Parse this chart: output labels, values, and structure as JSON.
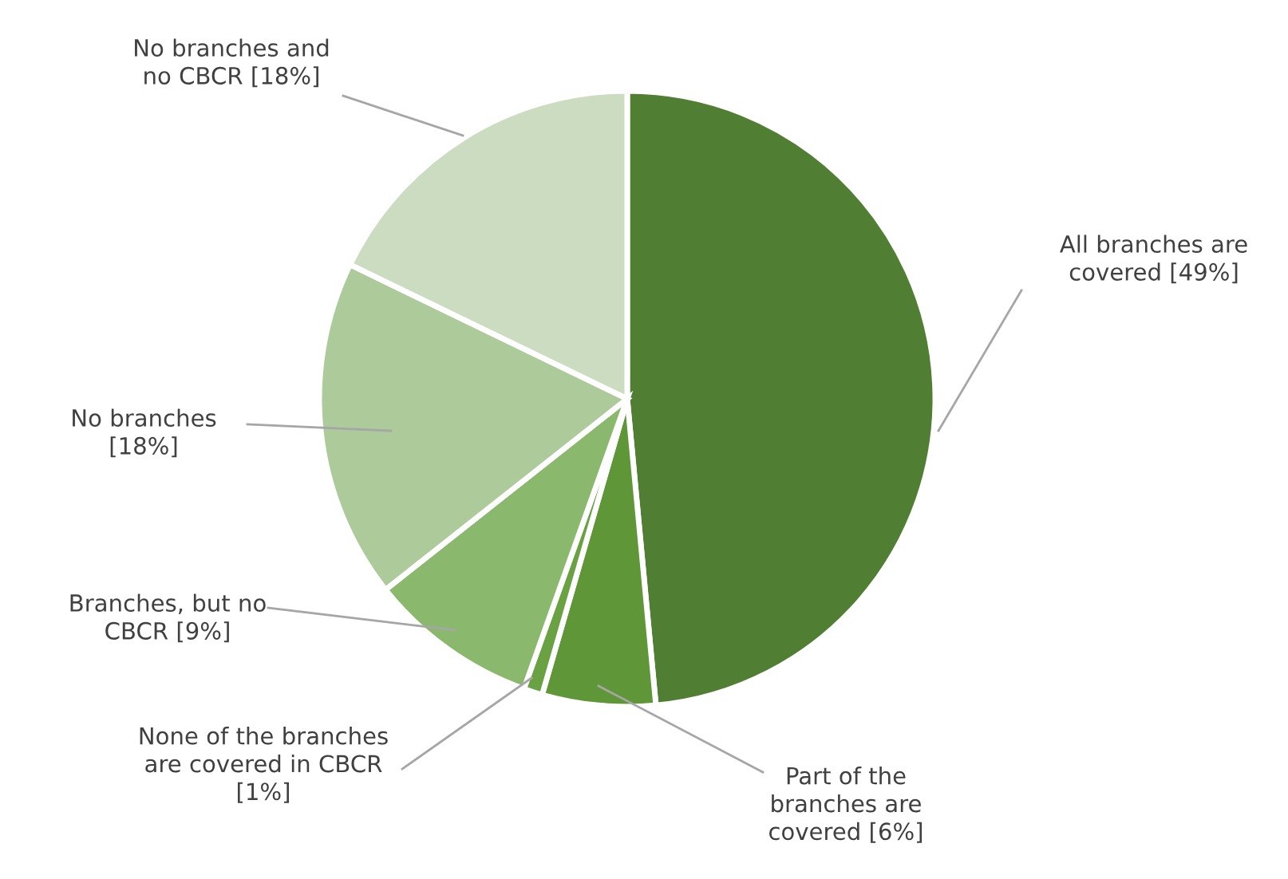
{
  "chart_data": {
    "type": "pie",
    "categories": [
      "All branches are\ncovered",
      "Part of the\nbranches are\ncovered",
      "None of the branches\nare covered in CBCR",
      "Branches, but no\nCBCR",
      "No branches",
      "No branches and\nno CBCR"
    ],
    "values": [
      49,
      6,
      1,
      9,
      18,
      18
    ],
    "value_labels": [
      "[49%]",
      "[6%]",
      "[1%]",
      "[9%]",
      "[18%]",
      "[18%]"
    ],
    "colors": [
      "#507e32",
      "#5f9638",
      "#6aa243",
      "#8ab96d",
      "#adca9b",
      "#cbdcc1"
    ],
    "legend": false
  }
}
